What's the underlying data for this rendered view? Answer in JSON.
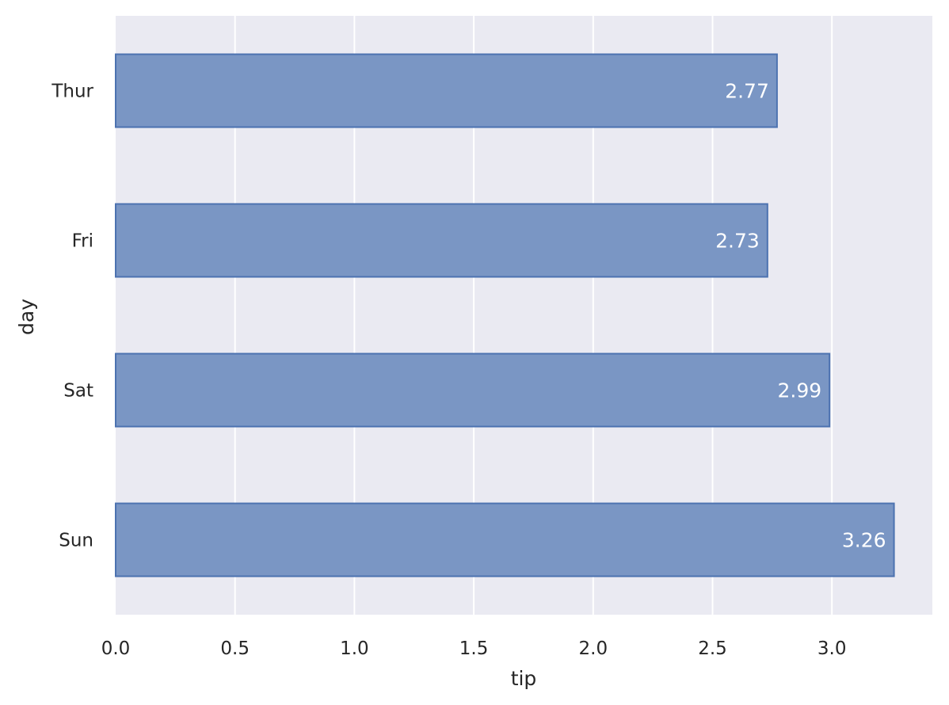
{
  "chart_data": {
    "type": "bar",
    "orientation": "horizontal",
    "categories": [
      "Thur",
      "Fri",
      "Sat",
      "Sun"
    ],
    "values": [
      2.77,
      2.73,
      2.99,
      3.26
    ],
    "data_labels": [
      "2.77",
      "2.73",
      "2.99",
      "3.26"
    ],
    "title": "",
    "xlabel": "tip",
    "ylabel": "day",
    "xlim": [
      0,
      3.42
    ],
    "xticks": [
      0.0,
      0.5,
      1.0,
      1.5,
      2.0,
      2.5,
      3.0
    ],
    "xtick_labels": [
      "0.0",
      "0.5",
      "1.0",
      "1.5",
      "2.0",
      "2.5",
      "3.0"
    ],
    "grid": true,
    "colors": {
      "background": "#eaeaf2",
      "grid": "#ffffff",
      "bar_fill": "#7a96c4",
      "bar_edge": "#4c72b0",
      "data_label": "#ffffff",
      "text": "#262626"
    }
  }
}
